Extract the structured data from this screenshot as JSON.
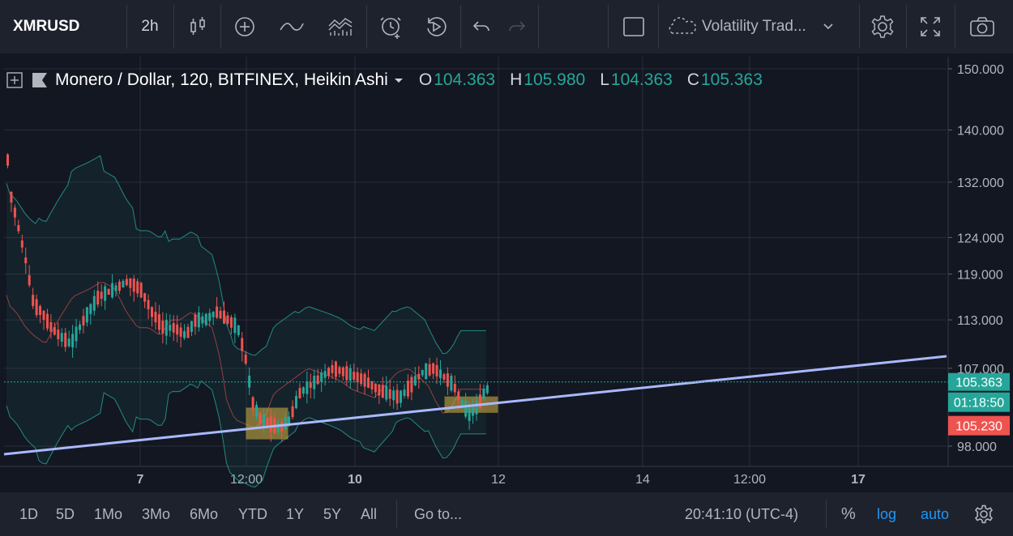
{
  "toolbar": {
    "symbol": "XMRUSD",
    "interval": "2h",
    "study_name": "Volatility Trad...",
    "icons": [
      "candles-icon",
      "add-indicator-icon",
      "line-icon",
      "compare-icon",
      "alert-icon",
      "replay-icon",
      "undo-icon",
      "redo-icon",
      "rectangle-icon",
      "cloud-icon",
      "chevron-down-icon",
      "gear-icon",
      "fullscreen-icon",
      "camera-icon"
    ]
  },
  "legend": {
    "title": "Monero / Dollar, 120, BITFINEX, Heikin Ashi",
    "o_key": "O",
    "o_val": "104.363",
    "h_key": "H",
    "h_val": "105.980",
    "l_key": "L",
    "l_val": "104.363",
    "c_key": "C",
    "c_val": "105.363"
  },
  "price_tags": {
    "last": "105.363",
    "countdown": "01:18:50",
    "other": "105.230"
  },
  "colors": {
    "up": "#26a69a",
    "down": "#ef5350",
    "band": "#26a69a",
    "basis": "#ef5350",
    "trendline": "#aab9ff",
    "box": "#c8a840",
    "last_tag": "#26a69a",
    "red_tag": "#ef5350"
  },
  "chart_data": {
    "type": "candlestick",
    "title": "Monero / Dollar, 120, BITFINEX, Heikin Ashi",
    "y_scale": "log",
    "y_ticks": [
      "150.000",
      "140.000",
      "132.000",
      "124.000",
      "119.000",
      "113.000",
      "107.000",
      "98.000"
    ],
    "x_ticks": [
      "7",
      "12:00",
      "10",
      "12",
      "14",
      "12:00",
      "17"
    ],
    "last_price": 105.363,
    "grid": true
  },
  "bottom": {
    "ranges": [
      "1D",
      "5D",
      "1Mo",
      "3Mo",
      "6Mo",
      "YTD",
      "1Y",
      "5Y",
      "All"
    ],
    "goto": "Go to...",
    "time": "20:41:10 (UTC-4)",
    "percent": "%",
    "log": "log",
    "auto": "auto"
  }
}
